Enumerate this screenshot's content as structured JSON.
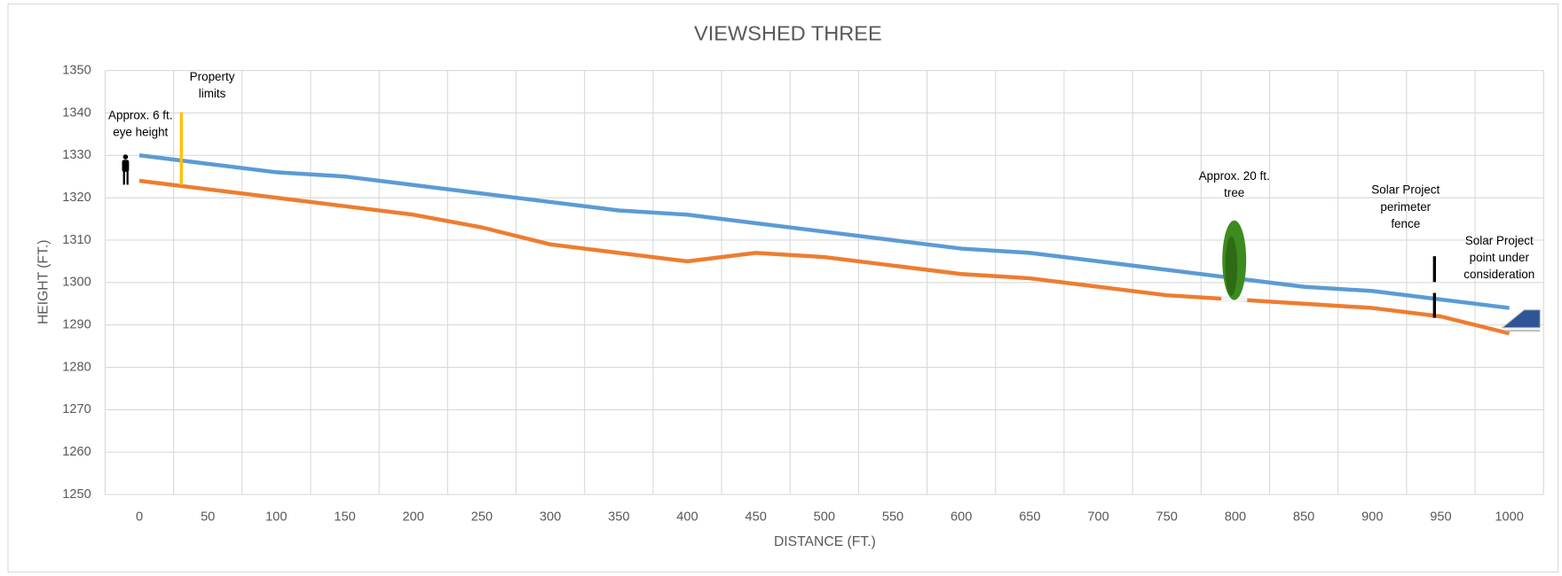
{
  "chart_data": {
    "type": "line",
    "title": "VIEWSHED  THREE",
    "x_label": "DISTANCE (FT.)",
    "y_label": "HEIGHT (FT.)",
    "categories": [
      "0",
      "50",
      "100",
      "150",
      "200",
      "250",
      "300",
      "350",
      "400",
      "450",
      "500",
      "550",
      "600",
      "650",
      "700",
      "750",
      "800",
      "850",
      "900",
      "950",
      "1000"
    ],
    "series": [
      {
        "color": "#5b9bd5",
        "values": [
          1330,
          1328,
          1326,
          1325,
          1323,
          1321,
          1319,
          1317,
          1316,
          1314,
          1312,
          1310,
          1308,
          1307,
          1305,
          1303,
          1301,
          1299,
          1298,
          1296,
          1294
        ]
      },
      {
        "color": "#ed7d31",
        "values": [
          1324,
          1322,
          1320,
          1318,
          1316,
          1313,
          1309,
          1307,
          1305,
          1307,
          1306,
          1304,
          1302,
          1301,
          1299,
          1297,
          1296,
          1295,
          1294,
          1292,
          1288
        ]
      }
    ],
    "ylim": [
      1250,
      1350
    ],
    "yticks": [
      1250,
      1260,
      1270,
      1280,
      1290,
      1300,
      1310,
      1320,
      1330,
      1340,
      1350
    ],
    "grid": true,
    "annotations": [
      [
        "Property",
        "limits"
      ],
      [
        "Approx. 6 ft.",
        "eye height"
      ],
      [
        "Approx. 20 ft.",
        "tree"
      ],
      [
        "Solar Project",
        "perimeter",
        "fence"
      ],
      [
        "Solar Project",
        "point under",
        "consideration"
      ]
    ]
  }
}
